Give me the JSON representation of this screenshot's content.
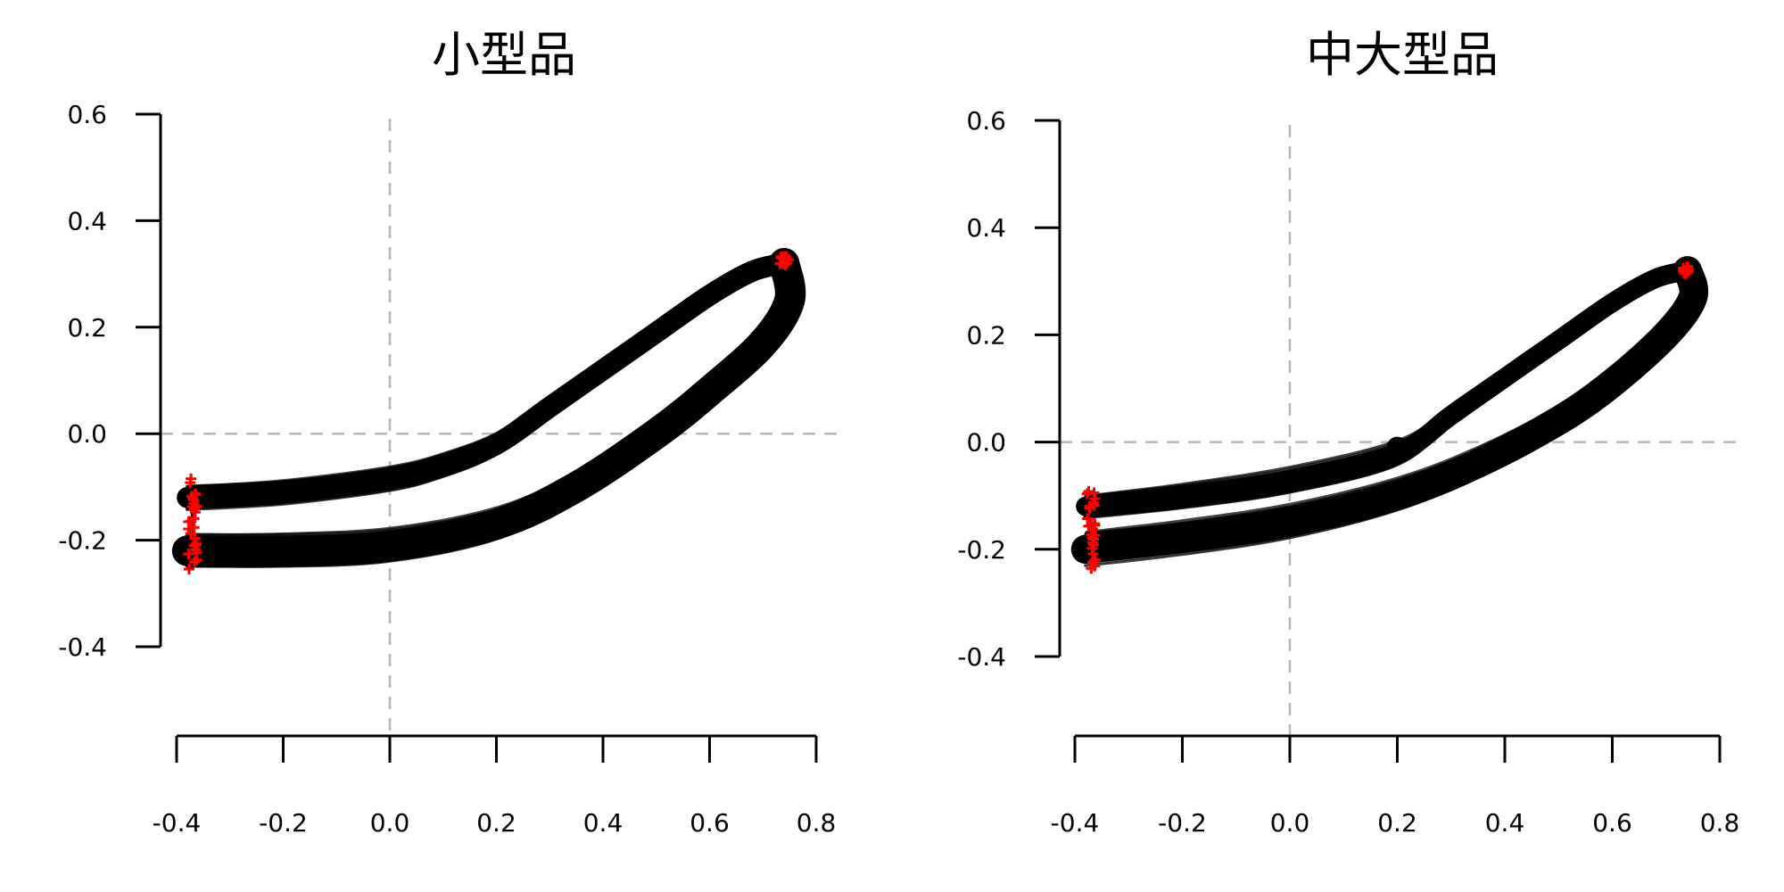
{
  "chart_data": [
    {
      "type": "line",
      "title": "小型品",
      "xlim": [
        -0.4,
        0.8
      ],
      "ylim": [
        -0.4,
        0.6
      ],
      "x_ticks": [
        "-0.4",
        "-0.2",
        "0.0",
        "0.2",
        "0.4",
        "0.6",
        "0.8"
      ],
      "y_ticks": [
        "0.6",
        "0.4",
        "0.2",
        "0.0",
        "-0.2",
        "-0.4"
      ],
      "reference_lines": {
        "x": 0.0,
        "y": 0.0
      },
      "grid": false,
      "colors": {
        "trajectories": "#000000",
        "endpoints": "#ff0000",
        "reference": "#b8b8b8"
      },
      "series": [
        {
          "band_halfwidth": 0.022,
          "points": [
            [
              -0.38,
              -0.12
            ],
            [
              -0.2,
              -0.11
            ],
            [
              0,
              -0.085
            ],
            [
              0.1,
              -0.06
            ],
            [
              0.2,
              -0.02
            ],
            [
              0.3,
              0.05
            ],
            [
              0.4,
              0.12
            ],
            [
              0.5,
              0.19
            ],
            [
              0.6,
              0.26
            ],
            [
              0.68,
              0.305
            ],
            [
              0.74,
              0.32
            ]
          ]
        },
        {
          "band_halfwidth": 0.032,
          "points": [
            [
              -0.38,
              -0.22
            ],
            [
              -0.2,
              -0.22
            ],
            [
              0,
              -0.21
            ],
            [
              0.2,
              -0.17
            ],
            [
              0.35,
              -0.1
            ],
            [
              0.5,
              0.0
            ],
            [
              0.6,
              0.08
            ],
            [
              0.7,
              0.17
            ],
            [
              0.75,
              0.25
            ],
            [
              0.74,
              0.32
            ]
          ]
        }
      ],
      "endpoints": [
        [
          -0.37,
          -0.12
        ],
        [
          -0.37,
          -0.21
        ],
        [
          0.74,
          0.325
        ]
      ]
    },
    {
      "type": "line",
      "title": "中大型品",
      "xlim": [
        -0.4,
        0.8
      ],
      "ylim": [
        -0.4,
        0.6
      ],
      "x_ticks": [
        "-0.4",
        "-0.2",
        "0.0",
        "0.2",
        "0.4",
        "0.6",
        "0.8"
      ],
      "y_ticks": [
        "0.6",
        "0.4",
        "0.2",
        "0.0",
        "-0.2",
        "-0.4"
      ],
      "reference_lines": {
        "x": 0.0,
        "y": 0.0
      },
      "grid": false,
      "colors": {
        "trajectories": "#000000",
        "endpoints": "#ff0000",
        "reference": "#b8b8b8"
      },
      "series": [
        {
          "band_halfwidth": 0.02,
          "points": [
            [
              -0.38,
              -0.12
            ],
            [
              -0.2,
              -0.1
            ],
            [
              0,
              -0.07
            ],
            [
              0.2,
              -0.02
            ],
            [
              0.3,
              0.05
            ],
            [
              0.4,
              0.12
            ],
            [
              0.5,
              0.19
            ],
            [
              0.6,
              0.26
            ],
            [
              0.68,
              0.305
            ],
            [
              0.74,
              0.32
            ]
          ]
        },
        {
          "band_halfwidth": 0.03,
          "points": [
            [
              -0.38,
              -0.2
            ],
            [
              -0.2,
              -0.18
            ],
            [
              0,
              -0.15
            ],
            [
              0.2,
              -0.1
            ],
            [
              0.35,
              -0.04
            ],
            [
              0.5,
              0.04
            ],
            [
              0.6,
              0.11
            ],
            [
              0.7,
              0.2
            ],
            [
              0.75,
              0.27
            ],
            [
              0.74,
              0.32
            ]
          ]
        }
      ],
      "endpoints": [
        [
          -0.37,
          -0.13
        ],
        [
          -0.37,
          -0.2
        ],
        [
          0.74,
          0.32
        ]
      ],
      "blob": [
        0.2,
        -0.01
      ]
    }
  ]
}
